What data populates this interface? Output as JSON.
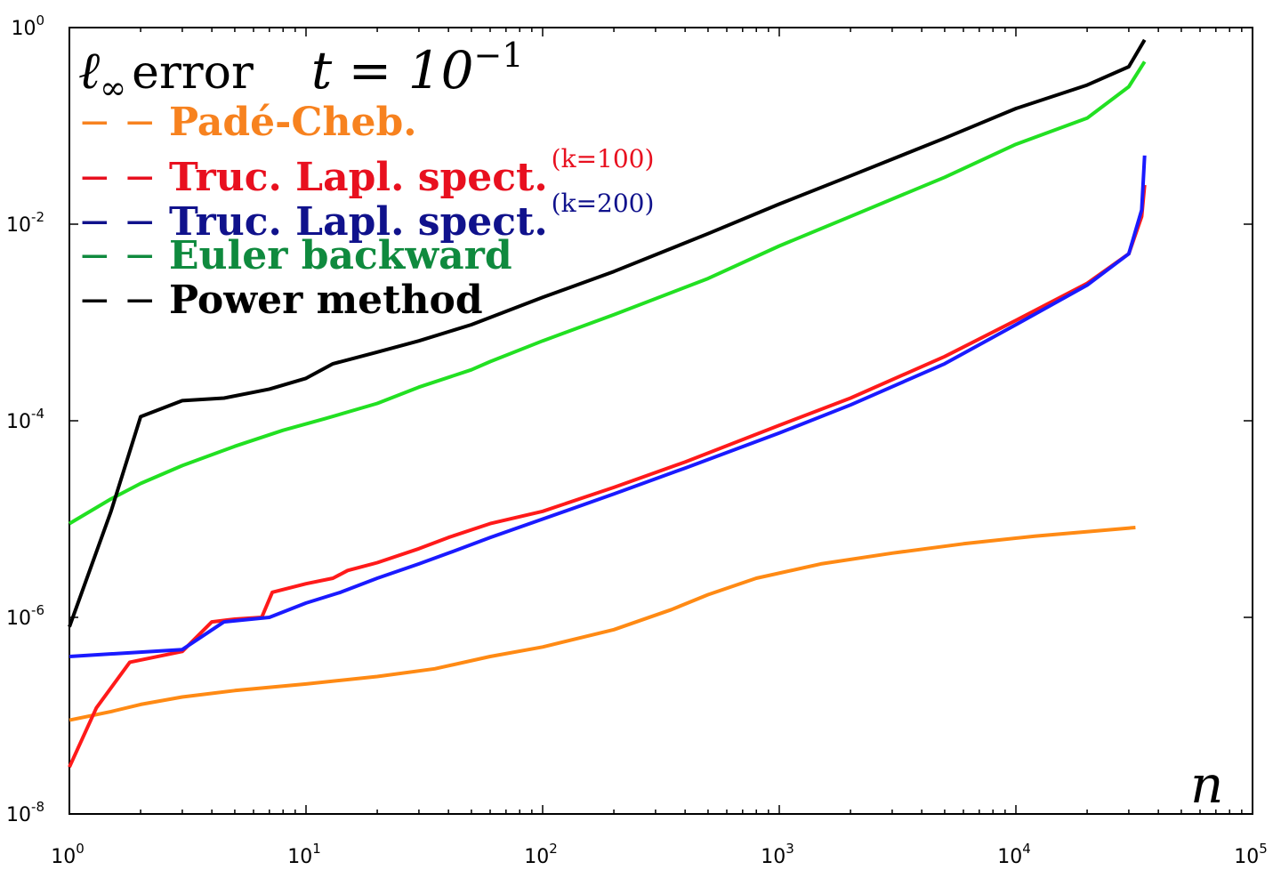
{
  "legend": {
    "title": {
      "symbol": "ℓ",
      "subscript": "∞",
      "word": "error",
      "t_label": "t = 10",
      "t_exp": "−1"
    },
    "items": [
      {
        "dash": "− −",
        "label": "Padé-Cheb.",
        "superscript": "",
        "color": "#f7821f"
      },
      {
        "dash": "− −",
        "label": "Truc. Lapl. spect.",
        "superscript": "(k=100)",
        "color": "#e8101f"
      },
      {
        "dash": "− −",
        "label": "Truc. Lapl. spect.",
        "superscript": "(k=200)",
        "color": "#10128c"
      },
      {
        "dash": "− −",
        "label": "Euler backward",
        "superscript": "",
        "color": "#0f8a3e"
      },
      {
        "dash": "− −",
        "label": "Power method",
        "superscript": "",
        "color": "#000000"
      }
    ]
  },
  "x_axis_var": "n",
  "chart_data": {
    "type": "line",
    "title": "",
    "xlabel": "n",
    "ylabel": "",
    "xscale": "log",
    "yscale": "log",
    "xlim": [
      1,
      100000
    ],
    "ylim": [
      1e-08,
      1
    ],
    "grid": false,
    "legend_position": "top-left",
    "x_ticks": [
      {
        "value": 1,
        "base": "10",
        "exp": "0"
      },
      {
        "value": 10,
        "base": "10",
        "exp": "1"
      },
      {
        "value": 100,
        "base": "10",
        "exp": "2"
      },
      {
        "value": 1000,
        "base": "10",
        "exp": "3"
      },
      {
        "value": 10000,
        "base": "10",
        "exp": "4"
      },
      {
        "value": 100000,
        "base": "10",
        "exp": "5"
      }
    ],
    "y_ticks": [
      {
        "value": 1e-08,
        "base": "10",
        "exp": "-8"
      },
      {
        "value": 1e-06,
        "base": "10",
        "exp": "-6"
      },
      {
        "value": 0.0001,
        "base": "10",
        "exp": "-4"
      },
      {
        "value": 0.01,
        "base": "10",
        "exp": "-2"
      },
      {
        "value": 1,
        "base": "10",
        "exp": "0"
      }
    ],
    "series": [
      {
        "color": "#ff8a14",
        "points": [
          [
            1,
            9e-08
          ],
          [
            1.5,
            1.1e-07
          ],
          [
            2,
            1.3e-07
          ],
          [
            3,
            1.55e-07
          ],
          [
            5,
            1.8e-07
          ],
          [
            10,
            2.1e-07
          ],
          [
            20,
            2.5e-07
          ],
          [
            35,
            3e-07
          ],
          [
            60,
            4e-07
          ],
          [
            100,
            5e-07
          ],
          [
            200,
            7.5e-07
          ],
          [
            350,
            1.2e-06
          ],
          [
            500,
            1.7e-06
          ],
          [
            800,
            2.5e-06
          ],
          [
            1500,
            3.5e-06
          ],
          [
            3000,
            4.5e-06
          ],
          [
            6000,
            5.6e-06
          ],
          [
            12000,
            6.7e-06
          ],
          [
            22000,
            7.6e-06
          ],
          [
            32000,
            8.2e-06
          ]
        ]
      },
      {
        "color": "#ff1a1a",
        "points": [
          [
            1,
            3e-08
          ],
          [
            1.3,
            1.2e-07
          ],
          [
            1.8,
            3.5e-07
          ],
          [
            3,
            4.5e-07
          ],
          [
            4,
            9e-07
          ],
          [
            5,
            9.6e-07
          ],
          [
            6.5,
            1e-06
          ],
          [
            7.2,
            1.8e-06
          ],
          [
            10,
            2.2e-06
          ],
          [
            13,
            2.5e-06
          ],
          [
            15,
            3e-06
          ],
          [
            20,
            3.6e-06
          ],
          [
            30,
            5e-06
          ],
          [
            40,
            6.5e-06
          ],
          [
            60,
            9e-06
          ],
          [
            100,
            1.2e-05
          ],
          [
            200,
            2.1e-05
          ],
          [
            400,
            3.8e-05
          ],
          [
            1000,
            9e-05
          ],
          [
            2000,
            0.00017
          ],
          [
            5000,
            0.00045
          ],
          [
            10000,
            0.00105
          ],
          [
            20000,
            0.0025
          ],
          [
            30000,
            0.005
          ],
          [
            34000,
            0.012
          ],
          [
            35000,
            0.025
          ]
        ]
      },
      {
        "color": "#1a1aff",
        "points": [
          [
            1,
            4e-07
          ],
          [
            3,
            4.7e-07
          ],
          [
            4.5,
            9e-07
          ],
          [
            7,
            1e-06
          ],
          [
            10,
            1.4e-06
          ],
          [
            14,
            1.8e-06
          ],
          [
            20,
            2.5e-06
          ],
          [
            30,
            3.5e-06
          ],
          [
            40,
            4.5e-06
          ],
          [
            60,
            6.5e-06
          ],
          [
            100,
            1e-05
          ],
          [
            200,
            1.8e-05
          ],
          [
            400,
            3.3e-05
          ],
          [
            1000,
            7.5e-05
          ],
          [
            2000,
            0.000145
          ],
          [
            5000,
            0.00038
          ],
          [
            10000,
            0.00095
          ],
          [
            20000,
            0.0024
          ],
          [
            30000,
            0.005
          ],
          [
            34000,
            0.014
          ],
          [
            35000,
            0.05
          ]
        ]
      },
      {
        "color": "#22e022",
        "points": [
          [
            1,
            9e-06
          ],
          [
            1.5,
            1.6e-05
          ],
          [
            2,
            2.3e-05
          ],
          [
            3,
            3.5e-05
          ],
          [
            5,
            5.5e-05
          ],
          [
            8,
            8e-05
          ],
          [
            12,
            0.000105
          ],
          [
            20,
            0.00015
          ],
          [
            30,
            0.00022
          ],
          [
            50,
            0.00033
          ],
          [
            60,
            0.0004
          ],
          [
            100,
            0.00065
          ],
          [
            200,
            0.0012
          ],
          [
            500,
            0.0028
          ],
          [
            1000,
            0.006
          ],
          [
            2000,
            0.012
          ],
          [
            5000,
            0.03
          ],
          [
            10000,
            0.065
          ],
          [
            20000,
            0.12
          ],
          [
            30000,
            0.25
          ],
          [
            35000,
            0.45
          ]
        ]
      },
      {
        "color": "#000000",
        "points": [
          [
            1,
            8e-07
          ],
          [
            1.5,
            1.2e-05
          ],
          [
            2,
            0.00011
          ],
          [
            3,
            0.00016
          ],
          [
            4.5,
            0.00017
          ],
          [
            7,
            0.00021
          ],
          [
            10,
            0.00027
          ],
          [
            13,
            0.00038
          ],
          [
            20,
            0.0005
          ],
          [
            30,
            0.00065
          ],
          [
            50,
            0.00095
          ],
          [
            100,
            0.0018
          ],
          [
            200,
            0.0033
          ],
          [
            500,
            0.008
          ],
          [
            1000,
            0.016
          ],
          [
            2000,
            0.031
          ],
          [
            5000,
            0.075
          ],
          [
            10000,
            0.15
          ],
          [
            20000,
            0.26
          ],
          [
            30000,
            0.4
          ],
          [
            35000,
            0.75
          ]
        ]
      }
    ]
  }
}
